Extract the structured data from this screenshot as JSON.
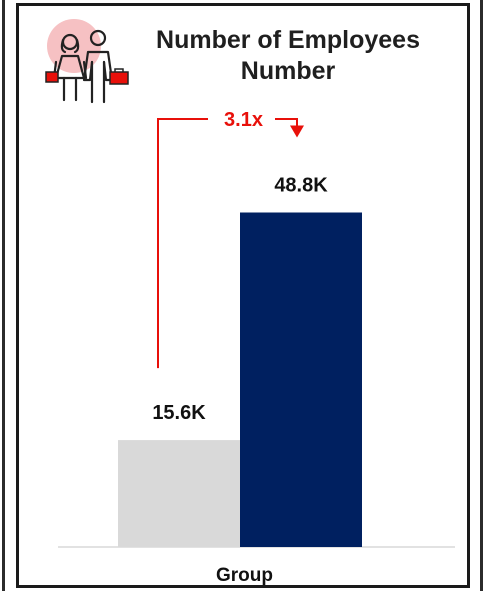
{
  "chart_data": {
    "type": "bar",
    "title": "Number of Employees",
    "subtitle": "Number",
    "categories": [
      "Group"
    ],
    "series": [
      {
        "values": [
          15.6
        ],
        "color": "#d9d9d9"
      },
      {
        "values": [
          48.8
        ],
        "color": "#002060"
      }
    ],
    "data_labels": [
      "15.6K",
      "48.8K"
    ],
    "annotation": {
      "text": "3.1x",
      "color": "#e8100a"
    },
    "ylim": [
      0,
      55
    ],
    "grid": false,
    "legend": "none"
  },
  "icon": {
    "name": "employees-icon",
    "accent": "#e8100a",
    "blob": "#f4b6b8"
  }
}
